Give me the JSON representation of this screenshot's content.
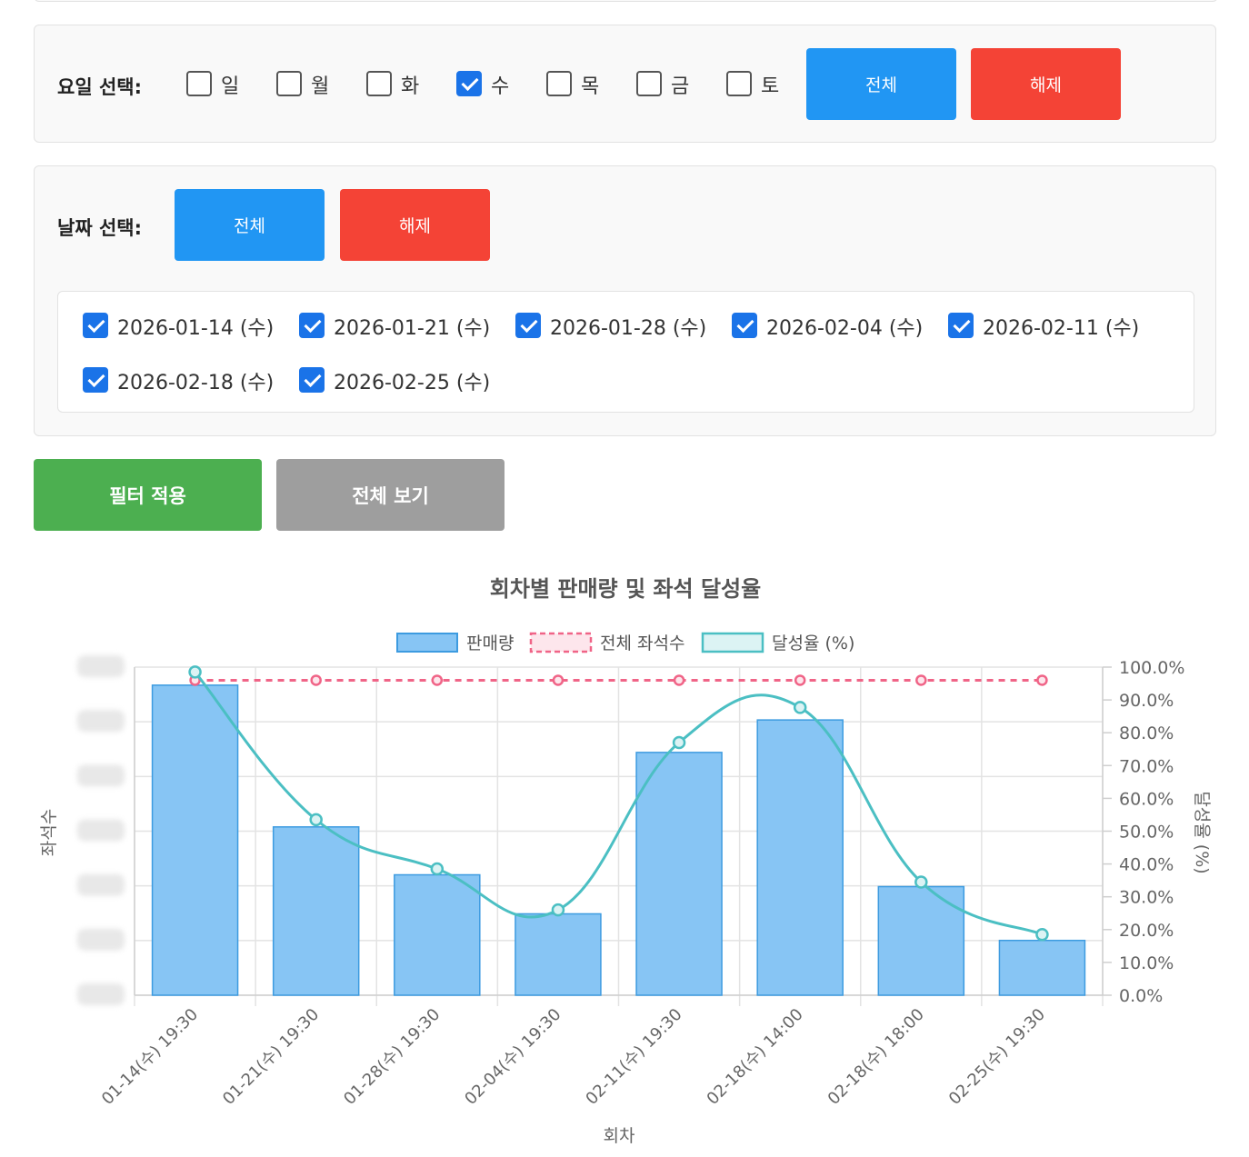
{
  "weekday_filter": {
    "label": "요일 선택:",
    "days": [
      {
        "label": "일",
        "checked": false
      },
      {
        "label": "월",
        "checked": false
      },
      {
        "label": "화",
        "checked": false
      },
      {
        "label": "수",
        "checked": true
      },
      {
        "label": "목",
        "checked": false
      },
      {
        "label": "금",
        "checked": false
      },
      {
        "label": "토",
        "checked": false
      }
    ],
    "select_all_label": "전체",
    "clear_label": "해제"
  },
  "date_filter": {
    "label": "날짜 선택:",
    "select_all_label": "전체",
    "clear_label": "해제",
    "dates": [
      {
        "label": "2026-01-14 (수)",
        "checked": true
      },
      {
        "label": "2026-01-21 (수)",
        "checked": true
      },
      {
        "label": "2026-01-28 (수)",
        "checked": true
      },
      {
        "label": "2026-02-04 (수)",
        "checked": true
      },
      {
        "label": "2026-02-11 (수)",
        "checked": true
      },
      {
        "label": "2026-02-18 (수)",
        "checked": true
      },
      {
        "label": "2026-02-25 (수)",
        "checked": true
      }
    ]
  },
  "actions": {
    "apply_label": "필터 적용",
    "show_all_label": "전체 보기"
  },
  "colors": {
    "blue": "#2196f3",
    "red": "#f44336",
    "green": "#4caf50",
    "gray": "#9e9e9e",
    "bar_fill": "#87c5f4",
    "bar_border": "#3d9be0",
    "seat_line": "#f06487",
    "rate_line": "#4bbfc3"
  },
  "chart_data": {
    "type": "bar",
    "title": "회차별 판매량 및 좌석 달성율",
    "xlabel": "회차",
    "ylabel_left": "좌석수",
    "ylabel_right": "달성율 (%)",
    "categories": [
      "01-14(수) 19:30",
      "01-21(수) 19:30",
      "01-28(수) 19:30",
      "02-04(수) 19:30",
      "02-11(수) 19:30",
      "02-18(수) 14:00",
      "02-18(수) 18:00",
      "02-25(수) 19:30"
    ],
    "legend": [
      "판매량",
      "전체 좌석수",
      "달성율 (%)"
    ],
    "legend_position": "top",
    "right_axis": {
      "ylim": [
        0,
        100
      ],
      "ticks": [
        "100.0%",
        "90.0%",
        "80.0%",
        "70.0%",
        "60.0%",
        "50.0%",
        "40.0%",
        "30.0%",
        "20.0%",
        "10.0%",
        "0.0%"
      ]
    },
    "series": [
      {
        "name": "판매량",
        "type": "bar",
        "axis": "left_relative_pct",
        "values": [
          94.5,
          51.3,
          36.7,
          24.8,
          74.0,
          83.9,
          33.1,
          16.7
        ]
      },
      {
        "name": "전체 좌석수",
        "type": "line",
        "style": "dashed",
        "axis": "left_relative_pct",
        "values": [
          96,
          96,
          96,
          96,
          96,
          96,
          96,
          96
        ]
      },
      {
        "name": "달성율 (%)",
        "type": "line",
        "style": "smooth",
        "axis": "right",
        "values": [
          98.5,
          53.5,
          38.5,
          26.0,
          77.0,
          87.7,
          34.5,
          18.5
        ]
      }
    ],
    "left_axis_ticks_blurred": true,
    "grid": true
  }
}
